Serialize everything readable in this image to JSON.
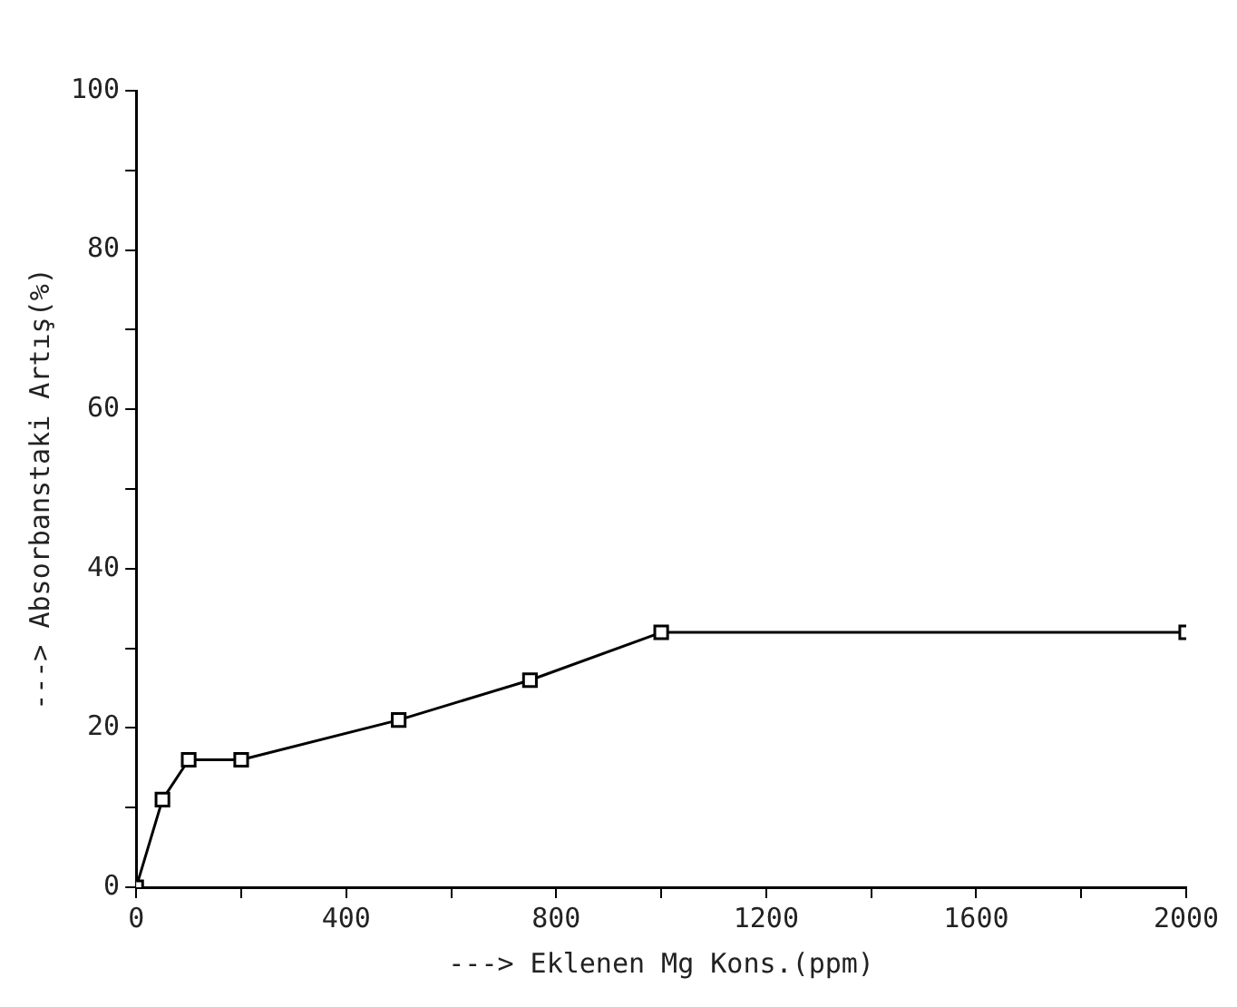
{
  "chart_data": {
    "type": "line",
    "xlabel": "---> Eklenen Mg Kons.(ppm)",
    "ylabel": "---> Absorbanstaki Artış(%)",
    "x": [
      0,
      50,
      100,
      200,
      500,
      750,
      1000,
      2000
    ],
    "series": [
      {
        "color": "#000000",
        "values": [
          0,
          11,
          16,
          16,
          21,
          26,
          32,
          32
        ]
      }
    ],
    "xlim": [
      0,
      2000
    ],
    "xticks": [
      0,
      {
        "value": 200,
        "label": null
      },
      400,
      {
        "value": 600,
        "label": null
      },
      800,
      {
        "value": 1000,
        "label": null
      },
      1200,
      {
        "value": 1400,
        "label": null
      },
      1600,
      {
        "value": 1800,
        "label": null
      },
      2000
    ],
    "ylim": [
      0,
      100
    ],
    "yticks": [
      0,
      {
        "value": 10,
        "label": null
      },
      20,
      {
        "value": 30,
        "label": null
      },
      40,
      {
        "value": 50,
        "label": null
      },
      60,
      {
        "value": 70,
        "label": null
      },
      80,
      {
        "value": 90,
        "label": null
      },
      100
    ],
    "grid": false,
    "legend": false,
    "marker": "square",
    "line_style": "solid"
  }
}
